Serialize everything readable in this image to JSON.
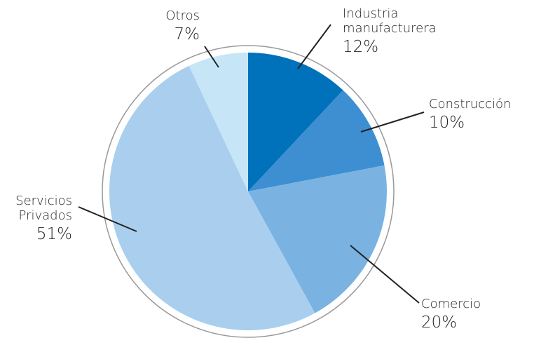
{
  "chart_data": {
    "type": "pie",
    "categories": [
      "Industria manufacturera",
      "Construcción",
      "Comercio",
      "Servicios Privados",
      "Otros"
    ],
    "values": [
      12,
      10,
      20,
      51,
      7
    ],
    "value_labels": [
      "12%",
      "10%",
      "20%",
      "51%",
      "7%"
    ],
    "colors": [
      "#0071bb",
      "#3d8fd1",
      "#7ab3e2",
      "#aacfee",
      "#c6e6f8"
    ]
  }
}
